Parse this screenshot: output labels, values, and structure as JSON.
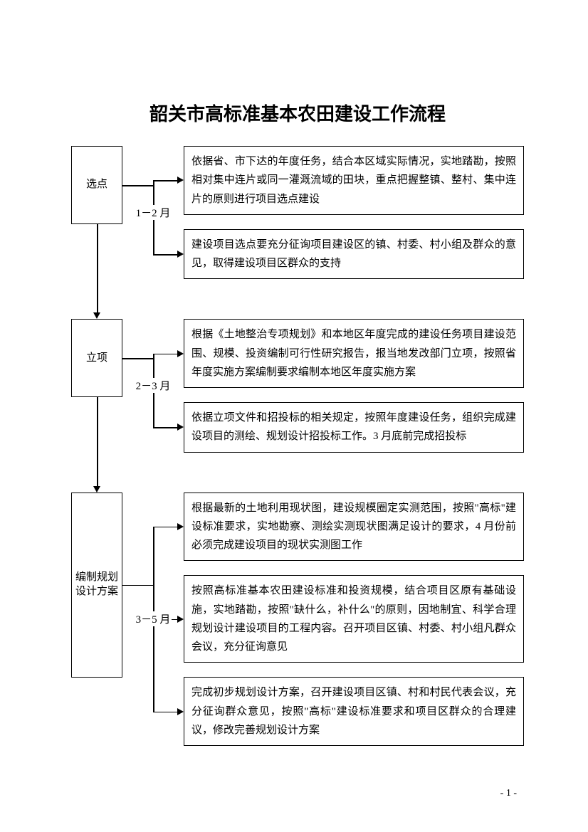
{
  "title": "韶关市高标准基本农田建设工作流程",
  "pageNum": "- 1 -",
  "flowchart": {
    "type": "flowchart",
    "border_color": "#000000",
    "background_color": "#ffffff",
    "font_family": "SimSun",
    "title_fontsize": 26,
    "body_fontsize": 15,
    "line_height": 1.75,
    "stages": [
      {
        "name": "选点",
        "period": "1－2 月",
        "height_hint": 110,
        "boxes": [
          "依据省、市下达的年度任务，结合本区域实际情况，实地踏勘，按照相对集中连片或同一灌溉流域的田块，重点把握整镇、整村、集中连片的原则进行项目选点建设",
          "建设项目选点要充分征询项目建设区的镇、村委、村小组及群众的意见，取得建设项目区群众的支持"
        ]
      },
      {
        "name": "立项",
        "period": "2－3 月",
        "height_hint": 110,
        "boxes": [
          "根据《土地整治专项规划》和本地区年度完成的建设任务项目建设范围、规模、投资编制可行性研究报告，报当地发改部门立项，按照省年度实施方案编制要求编制本地区年度实施方案",
          "依据立项文件和招投标的相关规定，按照年度建设任务，组织完成建设项目的测绘、规划设计招投标工作。3 月底前完成招投标"
        ]
      },
      {
        "name": "编制规划设计方案",
        "period": "3－5 月",
        "height_hint": 260,
        "boxes": [
          "根据最新的土地利用现状图，建设规模圈定实测范围，按照\"高标\"建设标准要求，实地勘察、测绘实测现状图满足设计的要求，4 月份前必须完成建设项目的现状实测图工作",
          "按照高标准基本农田建设标准和投资规模，结合项目区原有基础设施，实地踏勘，按照\"缺什么，补什么\"的原则，因地制宜、科学合理规划设计建设项目的工程内容。召开项目区镇、村委、村小组凡群众会议，充分征询意见",
          "完成初步规划设计方案，召开建设项目区镇、村和村民代表会议，充分征询群众意见，按照\"高标\"建设标准要求和项目区群众的合理建议，修改完善规划设计方案"
        ]
      }
    ]
  }
}
